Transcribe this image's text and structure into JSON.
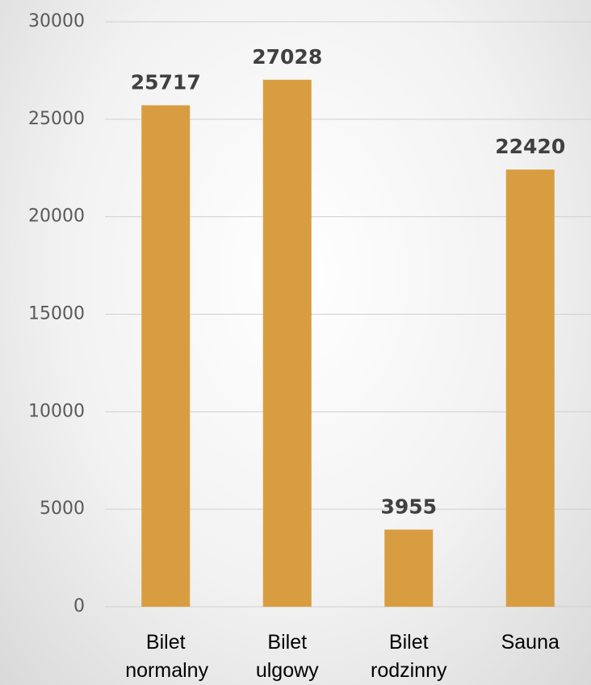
{
  "chart_data": {
    "type": "bar",
    "categories": [
      "Bilet normalny",
      "Bilet ulgowy",
      "Bilet rodzinny",
      "Sauna"
    ],
    "values": [
      25717,
      27028,
      3955,
      22420
    ],
    "color": "#d99d41",
    "ylim": [
      0,
      30000
    ],
    "yticks": [
      0,
      5000,
      10000,
      15000,
      20000,
      25000,
      30000
    ],
    "grid": true
  }
}
